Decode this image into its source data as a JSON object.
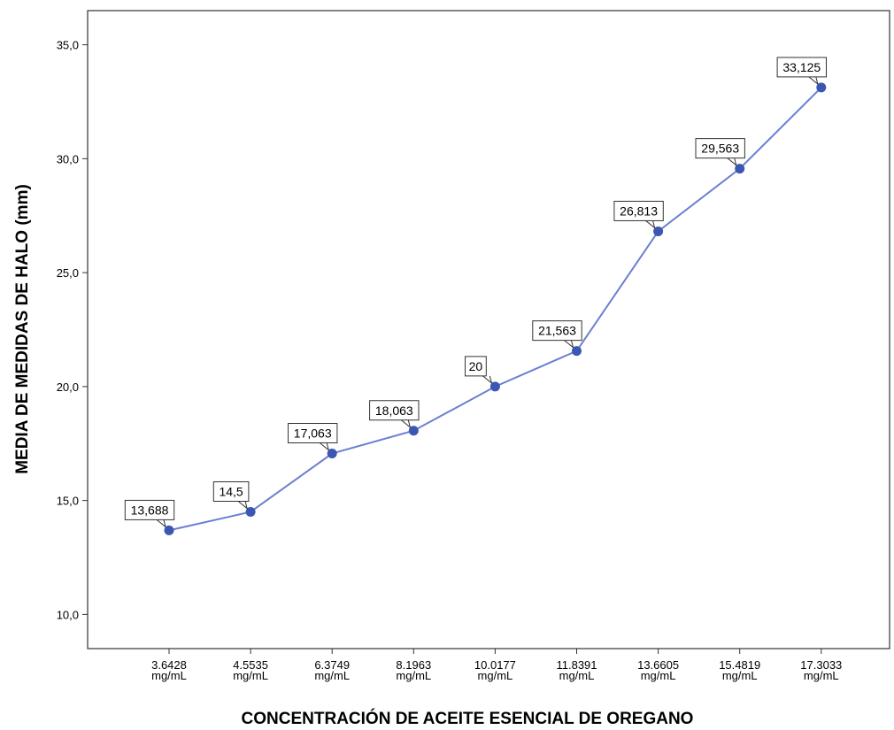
{
  "chart_data": {
    "type": "line",
    "xlabel": "CONCENTRACIÓN DE ACEITE ESENCIAL DE OREGANO",
    "ylabel": "MEDIA DE MEDIDAS DE HALO (mm)",
    "categories": [
      [
        "3.6428",
        "mg/mL"
      ],
      [
        "4.5535",
        "mg/mL"
      ],
      [
        "6.3749",
        "mg/mL"
      ],
      [
        "8.1963",
        "mg/mL"
      ],
      [
        "10.0177",
        "mg/mL"
      ],
      [
        "11.8391",
        "mg/mL"
      ],
      [
        "13.6605",
        "mg/mL"
      ],
      [
        "15.4819",
        "mg/mL"
      ],
      [
        "17.3033",
        "mg/mL"
      ]
    ],
    "values": [
      13.688,
      14.5,
      17.063,
      18.063,
      20,
      21.563,
      26.813,
      29.563,
      33.125
    ],
    "data_labels": [
      "13,688",
      "14,5",
      "17,063",
      "18,063",
      "20",
      "21,563",
      "26,813",
      "29,563",
      "33,125"
    ],
    "ylim": [
      8.5,
      36.5
    ],
    "yticks": [
      10,
      15,
      20,
      25,
      30,
      35
    ],
    "ytick_labels": [
      "10,0",
      "15,0",
      "20,0",
      "25,0",
      "30,0",
      "35,0"
    ],
    "grid": false,
    "line_color": "#6a7fd1",
    "marker_color": "#3c57b2"
  }
}
